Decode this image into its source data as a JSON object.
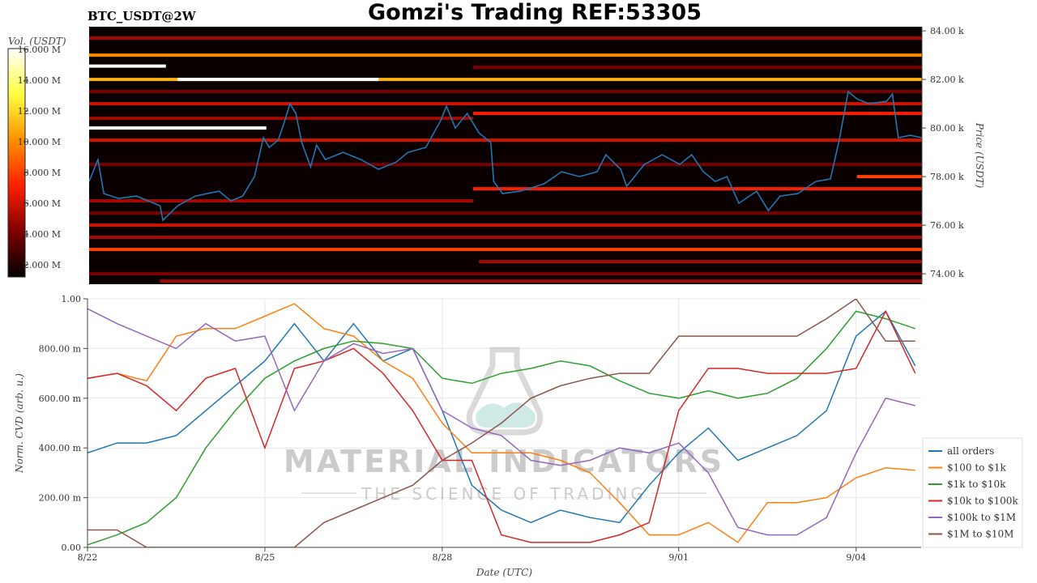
{
  "chart_data": [
    {
      "type": "heatmap",
      "title": "Gomzi's Trading REF:53305",
      "subtitle": "BTC_USDT@2W",
      "y_label": "Price (USDT)",
      "xlim": [
        0,
        14.1
      ],
      "ylim": [
        73570,
        84170
      ],
      "yticks": [
        {
          "value": 74000,
          "label": "74.00 k"
        },
        {
          "value": 76000,
          "label": "76.00 k"
        },
        {
          "value": 78000,
          "label": "78.00 k"
        },
        {
          "value": 80000,
          "label": "80.00 k"
        },
        {
          "value": 82000,
          "label": "82.00 k"
        },
        {
          "value": 84000,
          "label": "84.00 k"
        }
      ],
      "color": "#1f77b4",
      "x": [
        0,
        0.15,
        0.25,
        0.5,
        0.8,
        1,
        1.2,
        1.25,
        1.5,
        1.8,
        2.2,
        2.4,
        2.6,
        2.8,
        2.95,
        3.05,
        3.2,
        3.3,
        3.4,
        3.5,
        3.6,
        3.75,
        3.85,
        4,
        4.3,
        4.6,
        4.9,
        5.2,
        5.4,
        5.7,
        5.95,
        6.05,
        6.2,
        6.4,
        6.6,
        6.8,
        6.85,
        7,
        7.3,
        7.7,
        8,
        8.3,
        8.6,
        8.75,
        9,
        9.1,
        9.4,
        9.7,
        10,
        10.2,
        10.4,
        10.6,
        10.8,
        11,
        11.3,
        11.5,
        11.7,
        12,
        12.3,
        12.55,
        12.7,
        12.85,
        13,
        13.2,
        13.5,
        13.6,
        13.7,
        13.9,
        14.1
      ],
      "values": [
        77800,
        78700,
        77300,
        77100,
        77200,
        77000,
        76800,
        76200,
        76800,
        77200,
        77400,
        77000,
        77200,
        78000,
        79600,
        79200,
        79500,
        80200,
        81000,
        80600,
        79400,
        78400,
        79300,
        78700,
        79000,
        78700,
        78300,
        78600,
        79000,
        79200,
        80300,
        80900,
        80000,
        80600,
        79800,
        79400,
        77800,
        77300,
        77400,
        77700,
        78200,
        78000,
        78200,
        78900,
        78300,
        77600,
        78500,
        78900,
        78500,
        78900,
        78200,
        77800,
        78000,
        76900,
        77400,
        76600,
        77200,
        77300,
        77800,
        77900,
        79500,
        81500,
        81200,
        81000,
        81100,
        81400,
        79600,
        79700,
        79600
      ],
      "colorbar": {
        "label": "Vol. (USDT)",
        "clim": [
          1210000,
          16050000
        ],
        "ticks": [
          {
            "value": 2000000,
            "label": "2.000 M"
          },
          {
            "value": 4000000,
            "label": "4.000 M"
          },
          {
            "value": 6000000,
            "label": "6.000 M"
          },
          {
            "value": 8000000,
            "label": "8.000 M"
          },
          {
            "value": 10000000,
            "label": "10.000 M"
          },
          {
            "value": 12000000,
            "label": "12.000 M"
          },
          {
            "value": 14000000,
            "label": "14.000 M"
          },
          {
            "value": 16000000,
            "label": "16.000 M"
          }
        ],
        "colormap": [
          "#000000",
          "#800000",
          "#ff2000",
          "#ff9000",
          "#ffff40",
          "#ffffff"
        ]
      },
      "levels": [
        {
          "price": 83000,
          "volume": 10000000,
          "start": 0,
          "end": 14.1
        },
        {
          "price": 82000,
          "volume": 11000000,
          "start": 0,
          "end": 14.1
        },
        {
          "price": 82550,
          "volume": 16000000,
          "start": 0,
          "end": 1.3
        },
        {
          "price": 82000,
          "volume": 16000000,
          "start": 1.5,
          "end": 4.9
        },
        {
          "price": 80000,
          "volume": 16000000,
          "start": 0,
          "end": 3.0
        },
        {
          "price": 81000,
          "volume": 6000000,
          "start": 0,
          "end": 14.1
        },
        {
          "price": 80600,
          "volume": 7000000,
          "start": 6.5,
          "end": 14.1
        },
        {
          "price": 83700,
          "volume": 5000000,
          "start": 0,
          "end": 14.1
        },
        {
          "price": 79500,
          "volume": 6000000,
          "start": 0,
          "end": 14.1
        },
        {
          "price": 77500,
          "volume": 7000000,
          "start": 6.5,
          "end": 14.1
        },
        {
          "price": 76000,
          "volume": 6000000,
          "start": 0,
          "end": 14.1
        },
        {
          "price": 75000,
          "volume": 8000000,
          "start": 0,
          "end": 14.1
        },
        {
          "price": 74500,
          "volume": 5000000,
          "start": 6.6,
          "end": 14.1
        },
        {
          "price": 74000,
          "volume": 4000000,
          "start": 0,
          "end": 14.1
        },
        {
          "price": 73700,
          "volume": 5000000,
          "start": 1.2,
          "end": 14.1
        },
        {
          "price": 78500,
          "volume": 4000000,
          "start": 0,
          "end": 14.1
        },
        {
          "price": 77000,
          "volume": 5000000,
          "start": 0,
          "end": 6.5
        },
        {
          "price": 80400,
          "volume": 5000000,
          "start": 0,
          "end": 6.5
        },
        {
          "price": 81500,
          "volume": 4000000,
          "start": 0,
          "end": 14.1
        },
        {
          "price": 82500,
          "volume": 4000000,
          "start": 6.5,
          "end": 14.1
        },
        {
          "price": 78000,
          "volume": 8000000,
          "start": 13,
          "end": 14.1
        },
        {
          "price": 76500,
          "volume": 4000000,
          "start": 0,
          "end": 14.1
        },
        {
          "price": 75500,
          "volume": 5000000,
          "start": 0,
          "end": 14.1
        }
      ]
    },
    {
      "type": "line",
      "x_label": "Date (UTC)",
      "y_label": "Norm. CVD (arb. u.)",
      "grid": true,
      "legend": "right",
      "watermark": [
        "MATERIAL INDICATORS",
        "THE SCIENCE OF TRADING"
      ],
      "xlim": [
        0,
        14.1
      ],
      "ylim": [
        0,
        1
      ],
      "xticks": [
        {
          "value": 0,
          "label": "8/22"
        },
        {
          "value": 3,
          "label": "8/25"
        },
        {
          "value": 6,
          "label": "8/28"
        },
        {
          "value": 10,
          "label": "9/01"
        },
        {
          "value": 13,
          "label": "9/04"
        }
      ],
      "yticks": [
        {
          "value": 0,
          "label": "0.00"
        },
        {
          "value": 0.2,
          "label": "200.00 m"
        },
        {
          "value": 0.4,
          "label": "400.00 m"
        },
        {
          "value": 0.6,
          "label": "600.00 m"
        },
        {
          "value": 0.8,
          "label": "800.00 m"
        },
        {
          "value": 1,
          "label": "1.00"
        }
      ],
      "x": [
        0,
        0.5,
        1,
        1.5,
        2,
        2.5,
        3,
        3.5,
        4,
        4.5,
        5,
        5.5,
        6,
        6.5,
        7,
        7.5,
        8,
        8.5,
        9,
        9.5,
        10,
        10.5,
        11,
        11.5,
        12,
        12.5,
        13,
        13.5,
        14
      ],
      "series": [
        {
          "name": "all orders",
          "color": "#1f77b4",
          "values": [
            0.38,
            0.42,
            0.42,
            0.45,
            0.55,
            0.65,
            0.75,
            0.9,
            0.75,
            0.9,
            0.75,
            0.8,
            0.55,
            0.25,
            0.15,
            0.1,
            0.15,
            0.12,
            0.1,
            0.25,
            0.38,
            0.48,
            0.35,
            0.4,
            0.45,
            0.55,
            0.85,
            0.95,
            0.73
          ]
        },
        {
          "name": "$100 to $1k",
          "color": "#ff7f0e",
          "values": [
            0.68,
            0.7,
            0.67,
            0.85,
            0.88,
            0.88,
            0.93,
            0.98,
            0.88,
            0.85,
            0.75,
            0.68,
            0.5,
            0.38,
            0.38,
            0.38,
            0.35,
            0.3,
            0.18,
            0.05,
            0.05,
            0.1,
            0.02,
            0.18,
            0.18,
            0.2,
            0.28,
            0.32,
            0.31
          ]
        },
        {
          "name": "$1k to $10k",
          "color": "#2ca02c",
          "values": [
            0.01,
            0.05,
            0.1,
            0.2,
            0.4,
            0.55,
            0.68,
            0.75,
            0.8,
            0.83,
            0.82,
            0.8,
            0.68,
            0.66,
            0.7,
            0.72,
            0.75,
            0.73,
            0.67,
            0.62,
            0.6,
            0.63,
            0.6,
            0.62,
            0.68,
            0.8,
            0.95,
            0.92,
            0.88
          ]
        },
        {
          "name": "$10k to $100k",
          "color": "#d62728",
          "values": [
            0.68,
            0.7,
            0.65,
            0.55,
            0.68,
            0.72,
            0.4,
            0.72,
            0.75,
            0.8,
            0.7,
            0.55,
            0.35,
            0.35,
            0.05,
            0.02,
            0.02,
            0.02,
            0.05,
            0.1,
            0.55,
            0.72,
            0.72,
            0.7,
            0.7,
            0.7,
            0.72,
            0.95,
            0.7
          ]
        },
        {
          "name": "$100k to $1M",
          "color": "#9467bd",
          "values": [
            0.96,
            0.9,
            0.85,
            0.8,
            0.9,
            0.83,
            0.85,
            0.55,
            0.75,
            0.82,
            0.78,
            0.8,
            0.55,
            0.48,
            0.45,
            0.35,
            0.33,
            0.35,
            0.4,
            0.38,
            0.42,
            0.3,
            0.08,
            0.05,
            0.05,
            0.12,
            0.38,
            0.6,
            0.57
          ]
        },
        {
          "name": "$1M to $10M",
          "color": "#8c564b",
          "values": [
            0.07,
            0.07,
            0,
            0,
            0,
            0,
            0,
            0,
            0.1,
            0.15,
            0.2,
            0.25,
            0.35,
            0.42,
            0.5,
            0.6,
            0.65,
            0.68,
            0.7,
            0.7,
            0.85,
            0.85,
            0.85,
            0.85,
            0.85,
            0.92,
            1,
            0.83,
            0.83
          ]
        }
      ]
    }
  ]
}
